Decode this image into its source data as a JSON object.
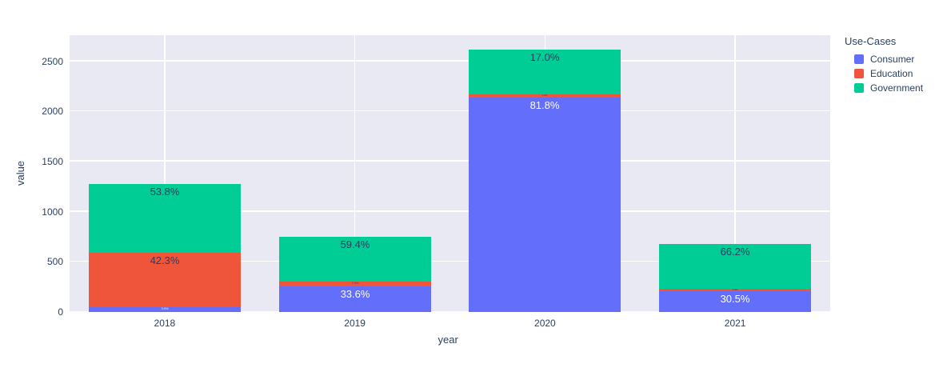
{
  "chart_data": {
    "type": "bar",
    "stacked": true,
    "title": "",
    "xlabel": "year",
    "ylabel": "value",
    "categories": [
      "2018",
      "2019",
      "2020",
      "2021"
    ],
    "series": [
      {
        "name": "Consumer",
        "color": "#636efa",
        "label_color": "#ffffff",
        "values": [
          50,
          252,
          2140,
          207
        ],
        "labels": [
          "3.9%",
          "33.6%",
          "81.8%",
          "30.5%"
        ]
      },
      {
        "name": "Education",
        "color": "#ef553b",
        "label_color": "#2a3f5f",
        "values": [
          541,
          52,
          31,
          22
        ],
        "labels": [
          "42.3%",
          "7.0%",
          "1.2%",
          "3.3%"
        ]
      },
      {
        "name": "Government",
        "color": "#00cc96",
        "label_color": "#2a3f5f",
        "values": [
          689,
          446,
          445,
          449
        ],
        "labels": [
          "53.8%",
          "59.4%",
          "17.0%",
          "66.2%"
        ]
      }
    ],
    "totals": [
      1280,
      750,
      2616,
      678
    ],
    "ylim": [
      0,
      2760
    ],
    "yticks": [
      0,
      500,
      1000,
      1500,
      2000,
      2500
    ],
    "legend_title": "Use-Cases",
    "legend_position": "right",
    "grid": true,
    "plot_bgcolor": "#e8e9f2",
    "paper_bgcolor": "#ffffff",
    "text_color": "#2a3f5f"
  }
}
